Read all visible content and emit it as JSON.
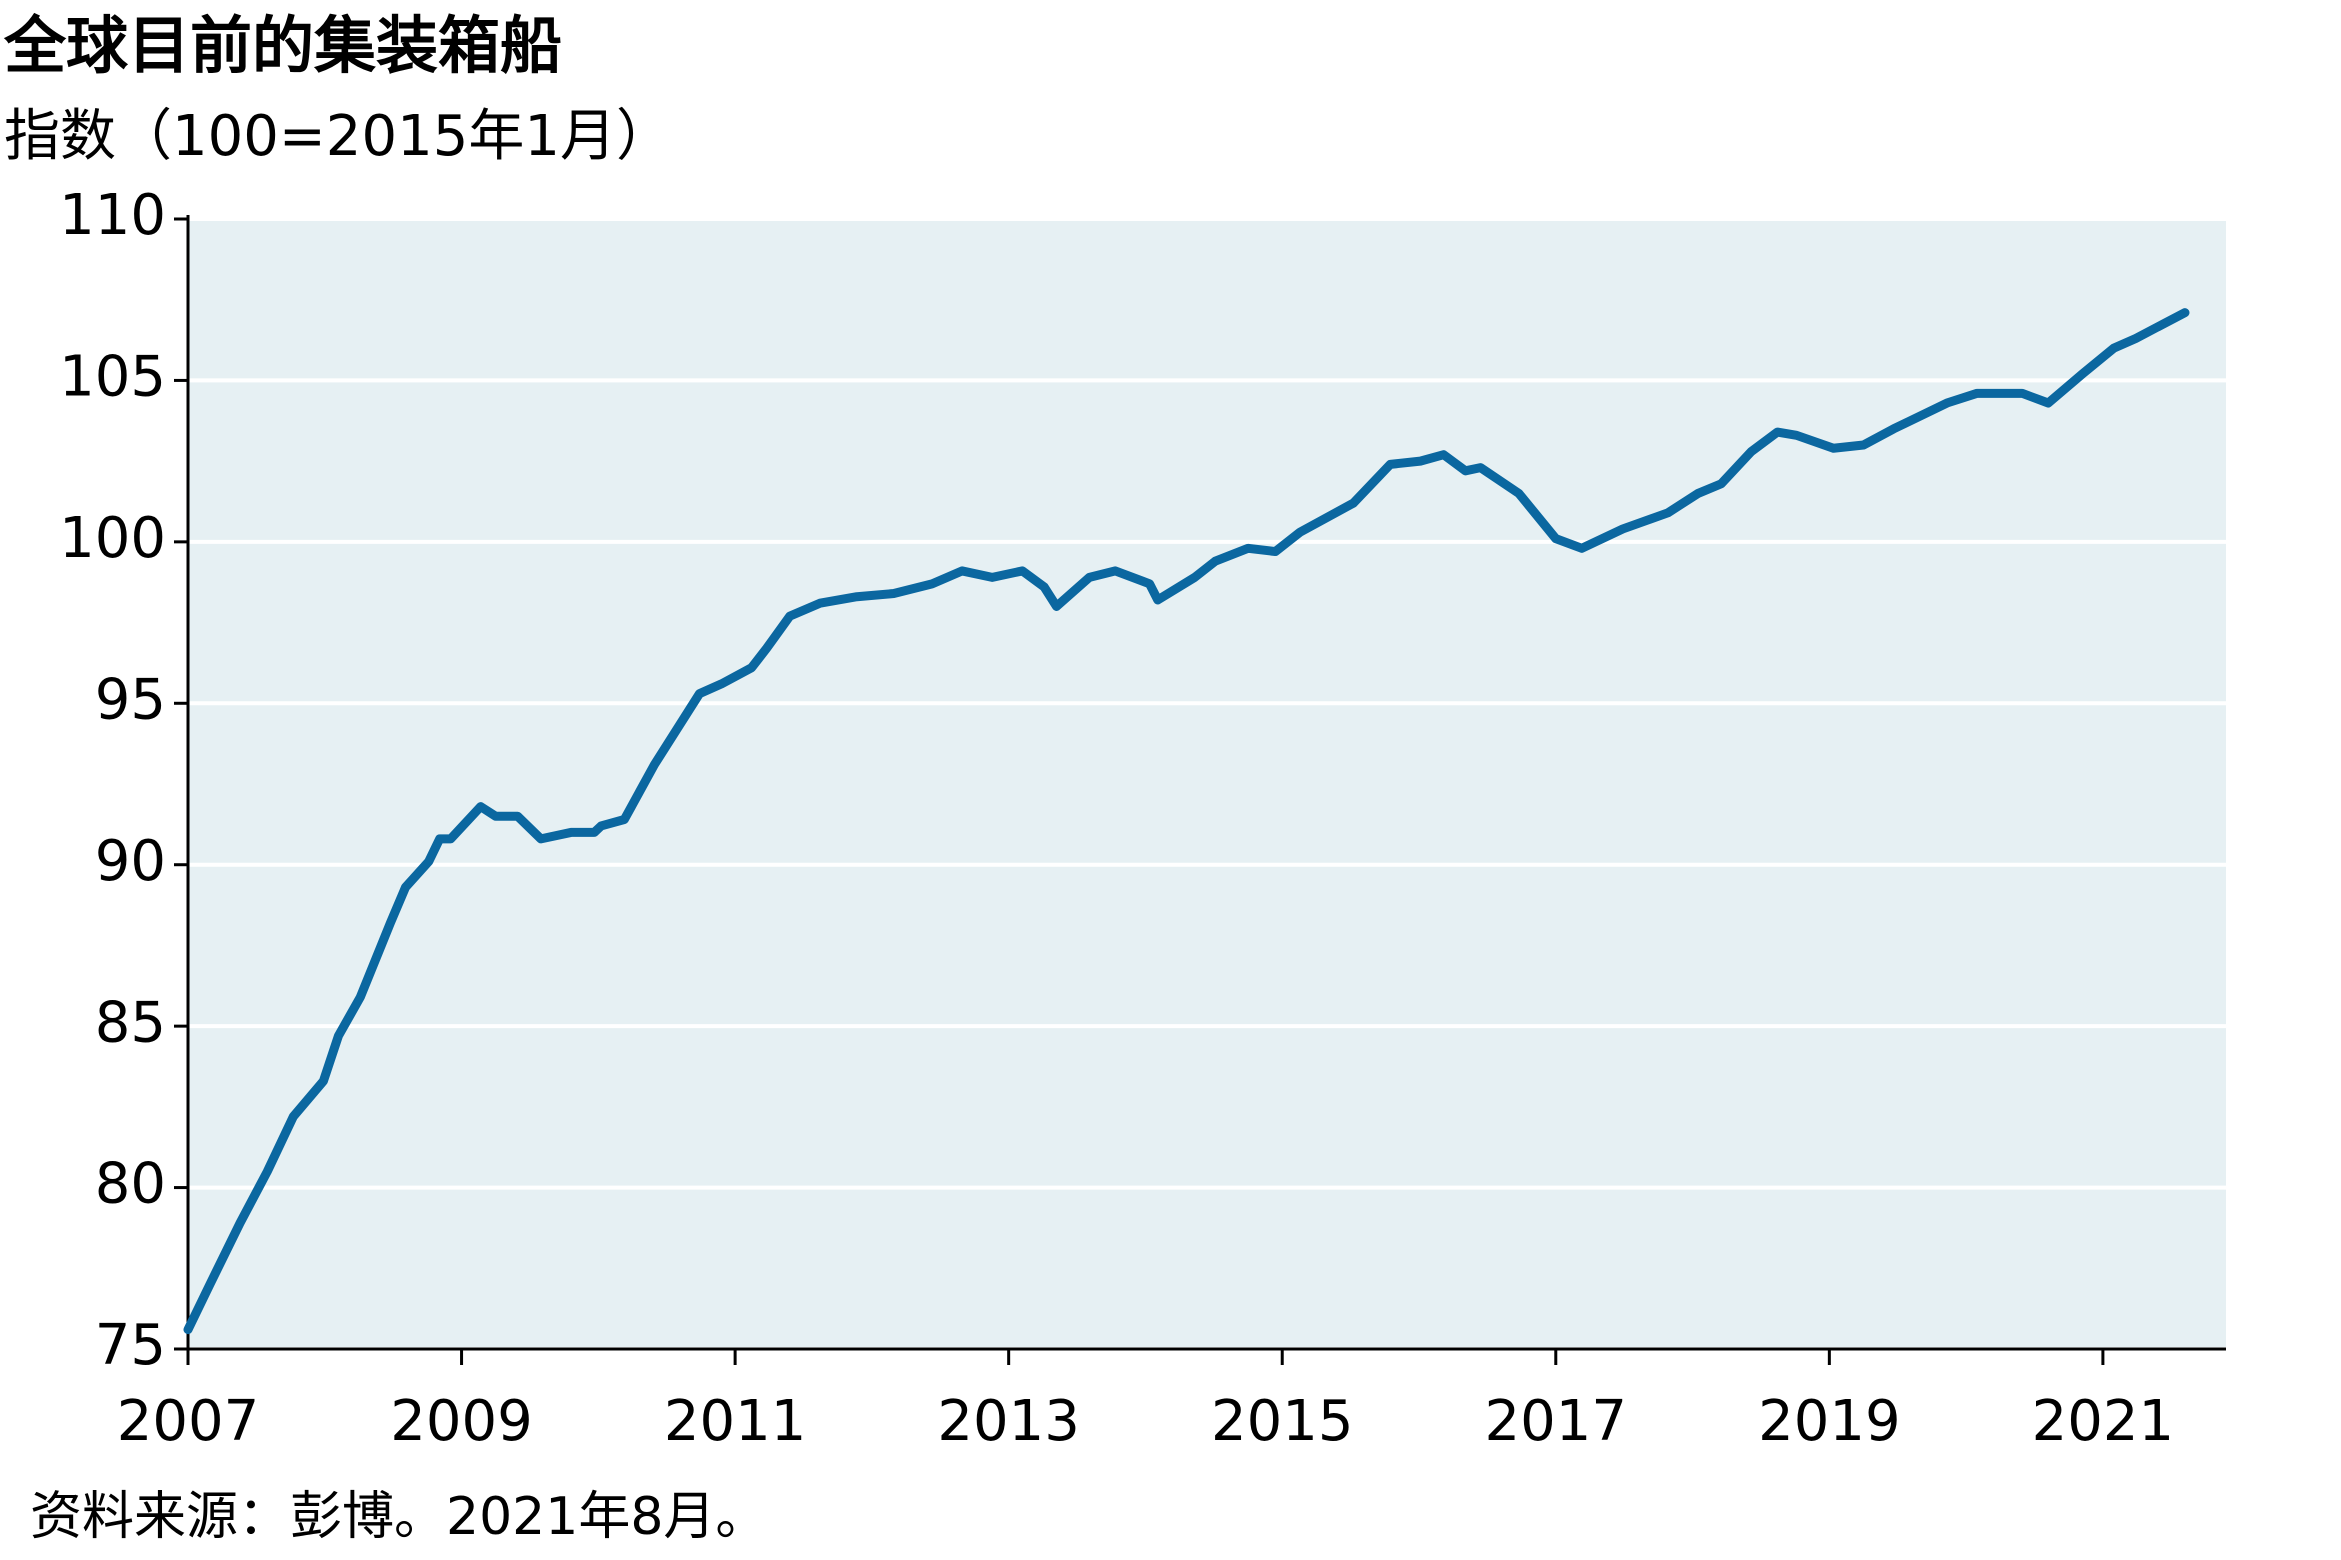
{
  "chart_data": {
    "type": "line",
    "title": "全球目前的集装箱船",
    "subtitle": "指数（100=2015年1月）",
    "source": "资料来源：彭博。2021年8月。",
    "xlim": [
      2007,
      2021.9
    ],
    "xticks": [
      2007,
      2009,
      2011,
      2013,
      2015,
      2017,
      2019,
      2021
    ],
    "ylim": [
      75,
      110
    ],
    "yticks": [
      75,
      80,
      85,
      90,
      95,
      100,
      105,
      110
    ],
    "grid": true,
    "background": "#e6f0f3",
    "series": [
      {
        "color": "#0b67a0",
        "x": [
          2007,
          2007.16,
          2007.38,
          2007.58,
          2007.77,
          2007.99,
          2008.1,
          2008.26,
          2008.48,
          2008.59,
          2008.76,
          2008.84,
          2008.92,
          2009.14,
          2009.25,
          2009.41,
          2009.58,
          2009.8,
          2009.97,
          2010.02,
          2010.19,
          2010.41,
          2010.74,
          2010.9,
          2011.12,
          2011.23,
          2011.4,
          2011.62,
          2011.89,
          2012.16,
          2012.44,
          2012.66,
          2012.88,
          2013.1,
          2013.26,
          2013.35,
          2013.59,
          2013.78,
          2014.03,
          2014.09,
          2014.36,
          2014.51,
          2014.75,
          2014.95,
          2015.13,
          2015.52,
          2015.79,
          2016.01,
          2016.18,
          2016.34,
          2016.45,
          2016.73,
          2017,
          2017.19,
          2017.49,
          2017.82,
          2018.04,
          2018.21,
          2018.43,
          2018.62,
          2018.76,
          2019.03,
          2019.25,
          2019.47,
          2019.86,
          2020.08,
          2020.41,
          2020.6,
          2020.85,
          2021.08,
          2021.24,
          2021.6
        ],
        "values": [
          75.6,
          77.0,
          78.9,
          80.5,
          82.2,
          83.3,
          84.7,
          85.9,
          88.2,
          89.3,
          90.1,
          90.8,
          90.8,
          91.8,
          91.5,
          91.5,
          90.8,
          91.0,
          91.0,
          91.2,
          91.4,
          93.1,
          95.3,
          95.6,
          96.1,
          96.7,
          97.7,
          98.1,
          98.3,
          98.4,
          98.7,
          99.1,
          98.9,
          99.1,
          98.6,
          98.0,
          98.9,
          99.1,
          98.7,
          98.2,
          98.9,
          99.4,
          99.8,
          99.7,
          100.3,
          101.2,
          102.4,
          102.5,
          102.7,
          102.2,
          102.3,
          101.5,
          100.1,
          99.8,
          100.4,
          100.9,
          101.5,
          101.8,
          102.8,
          103.4,
          103.3,
          102.9,
          103.0,
          103.5,
          104.3,
          104.6,
          104.6,
          104.3,
          105.2,
          106.0,
          106.3,
          107.1
        ]
      }
    ]
  }
}
